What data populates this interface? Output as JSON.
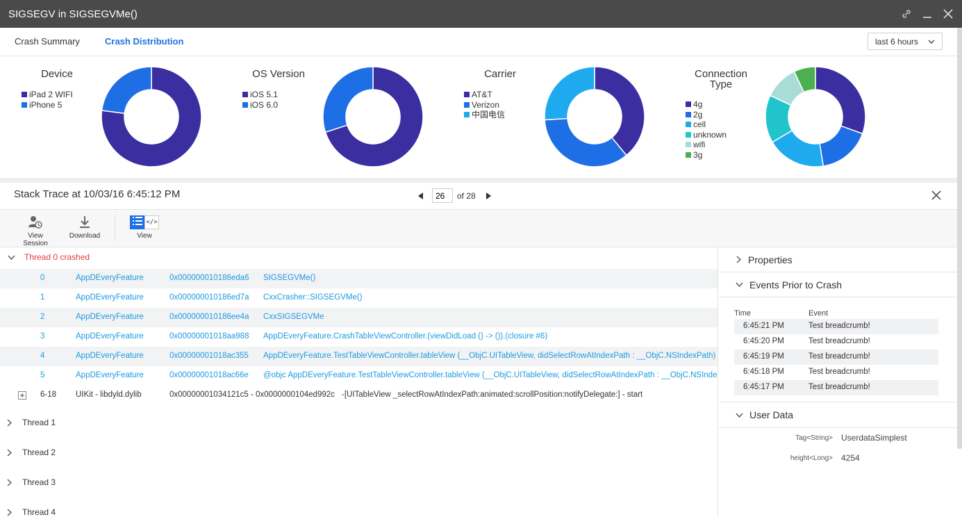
{
  "window": {
    "title": "SIGSEGV in SIGSEGVMe()"
  },
  "tabs": [
    {
      "label": "Crash Summary",
      "active": false
    },
    {
      "label": "Crash Distribution",
      "active": true
    }
  ],
  "time_range": {
    "selected": "last 6 hours"
  },
  "charts": [
    {
      "title": "Device",
      "legend": [
        {
          "label": "iPad 2 WIFI",
          "color": "#3a2ea0",
          "value": 0.77
        },
        {
          "label": "iPhone 5",
          "color": "#1e6ee6",
          "value": 0.23
        }
      ]
    },
    {
      "title": "OS Version",
      "legend": [
        {
          "label": "iOS 5.1",
          "color": "#3a2ea0",
          "value": 0.7
        },
        {
          "label": "iOS 6.0",
          "color": "#1e6ee6",
          "value": 0.3
        }
      ]
    },
    {
      "title": "Carrier",
      "legend": [
        {
          "label": "AT&T",
          "color": "#3a2ea0",
          "value": 0.39
        },
        {
          "label": "Verizon",
          "color": "#1e6ee6",
          "value": 0.35
        },
        {
          "label": "中国电信",
          "color": "#1fa9ee",
          "value": 0.26
        }
      ]
    },
    {
      "title_lines": [
        "Connection",
        "Type"
      ],
      "legend": [
        {
          "label": "4g",
          "color": "#3a2ea0",
          "value": 0.305
        },
        {
          "label": "2g",
          "color": "#1e6ee6",
          "value": 0.17
        },
        {
          "label": "cell",
          "color": "#1fa9ee",
          "value": 0.19
        },
        {
          "label": "unknown",
          "color": "#22c4cc",
          "value": 0.155
        },
        {
          "label": "wifi",
          "color": "#a9dcd6",
          "value": 0.11
        },
        {
          "label": "3g",
          "color": "#4caf50",
          "value": 0.07
        }
      ]
    }
  ],
  "stack_trace": {
    "title": "Stack Trace at 10/03/16 6:45:12 PM",
    "page": "26",
    "of_label": "of 28"
  },
  "toolbar": {
    "view_session": "View Session",
    "download": "Download",
    "view": "View",
    "code_glyph": "</>"
  },
  "thread0": {
    "label": "Thread 0 crashed"
  },
  "frames": [
    {
      "idx": "0",
      "module": "AppDEveryFeature",
      "addr": "0x000000010186eda6",
      "sym": "SIGSEGVMe()"
    },
    {
      "idx": "1",
      "module": "AppDEveryFeature",
      "addr": "0x000000010186ed7a",
      "sym": "CxxCrasher::SIGSEGVMe()"
    },
    {
      "idx": "2",
      "module": "AppDEveryFeature",
      "addr": "0x000000010186ee4a",
      "sym": "CxxSIGSEGVMe"
    },
    {
      "idx": "3",
      "module": "AppDEveryFeature",
      "addr": "0x00000001018aa988",
      "sym": "AppDEveryFeature.CrashTableViewController.(viewDidLoad () -> ()).(closure #6)"
    },
    {
      "idx": "4",
      "module": "AppDEveryFeature",
      "addr": "0x00000001018ac355",
      "sym": "AppDEveryFeature.TestTableViewController.tableView (__ObjC.UITableView, didSelectRowAtIndexPath : __ObjC.NSIndexPath) -> ()"
    },
    {
      "idx": "5",
      "module": "AppDEveryFeature",
      "addr": "0x00000001018ac66e",
      "sym": "@objc AppDEveryFeature.TestTableViewController.tableView (__ObjC.UITableView, didSelectRowAtIndexPath : __ObjC.NSIndexPath) -> ()"
    }
  ],
  "collapsed_frame": {
    "idx": "6-18",
    "module": "UIKit - libdyld.dylib",
    "addr": "0x00000001034121c5 - 0x0000000104ed992c",
    "sym": "-[UITableView _selectRowAtIndexPath:animated:scrollPosition:notifyDelegate:] - start"
  },
  "threads": [
    "Thread 1",
    "Thread 2",
    "Thread 3",
    "Thread 4"
  ],
  "right_panel": {
    "properties": "Properties",
    "events_title": "Events Prior to Crash",
    "events_cols": {
      "time": "Time",
      "event": "Event"
    },
    "events": [
      {
        "time": "6:45:21 PM",
        "event": "Test breadcrumb!"
      },
      {
        "time": "6:45:20 PM",
        "event": "Test breadcrumb!"
      },
      {
        "time": "6:45:19 PM",
        "event": "Test breadcrumb!"
      },
      {
        "time": "6:45:18 PM",
        "event": "Test breadcrumb!"
      },
      {
        "time": "6:45:17 PM",
        "event": "Test breadcrumb!"
      }
    ],
    "user_data_title": "User Data",
    "user_data": [
      {
        "key": "Tag<String>",
        "value": "UserdataSimplest"
      },
      {
        "key": "height<Long>",
        "value": "4254"
      }
    ]
  }
}
